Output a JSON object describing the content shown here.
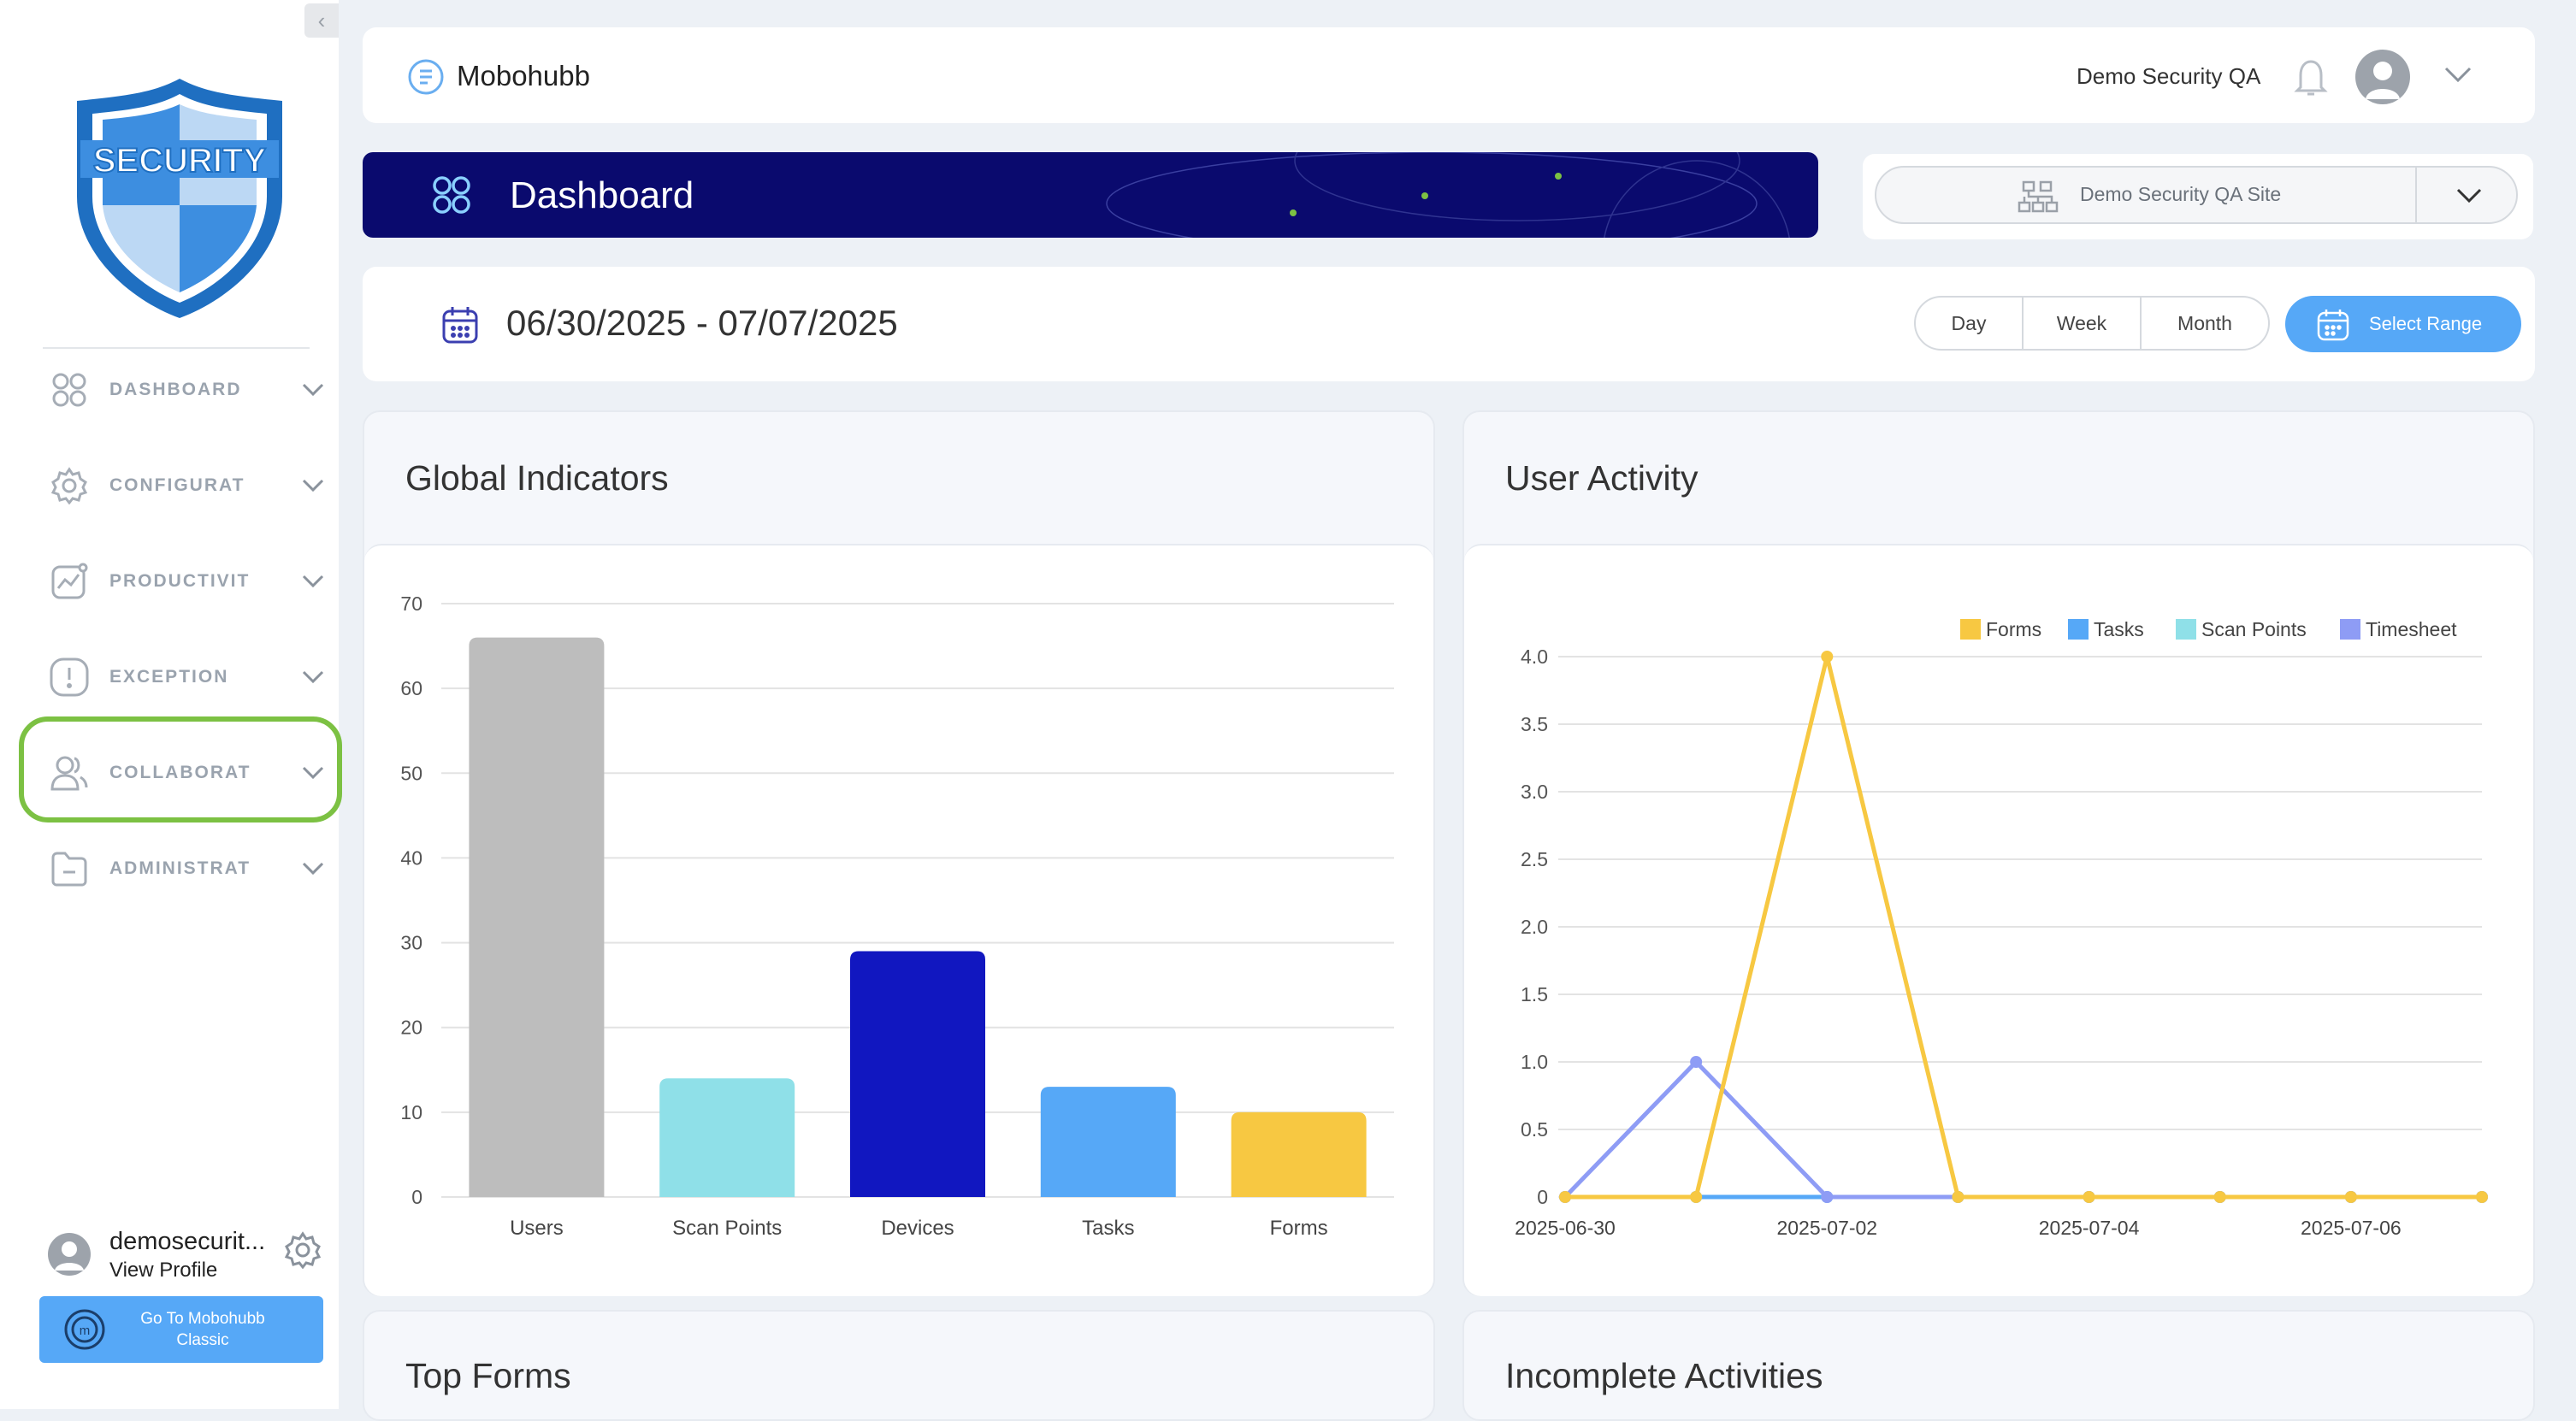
{
  "topbar": {
    "app_name": "Mobohubb",
    "user_name": "Demo Security QA"
  },
  "banner": {
    "title": "Dashboard"
  },
  "site_select": {
    "value": "Demo Security QA Site"
  },
  "date_bar": {
    "range": "06/30/2025 - 07/07/2025",
    "buttons": [
      "Day",
      "Week",
      "Month"
    ],
    "select_range": "Select Range"
  },
  "logo": {
    "text": "SECURITY"
  },
  "sidebar": {
    "items": [
      {
        "label": "DASHBOARD",
        "icon": "grid-icon"
      },
      {
        "label": "CONFIGURAT",
        "icon": "gear-icon"
      },
      {
        "label": "PRODUCTIVIT",
        "icon": "trend-chart-icon"
      },
      {
        "label": "EXCEPTION",
        "icon": "exclamation-icon"
      },
      {
        "label": "COLLABORAT",
        "icon": "users-icon"
      },
      {
        "label": "ADMINISTRAT",
        "icon": "folder-icon"
      }
    ],
    "profile": {
      "name": "demosecurit...",
      "link": "View Profile"
    },
    "classic_button": "Go To Mobohubb Classic"
  },
  "panels": {
    "global_indicators": "Global Indicators",
    "user_activity": "User Activity",
    "top_forms": "Top Forms",
    "incomplete_activities": "Incomplete Activities"
  },
  "chart_data": [
    {
      "type": "bar",
      "title": "Global Indicators",
      "categories": [
        "Users",
        "Scan Points",
        "Devices",
        "Tasks",
        "Forms"
      ],
      "values": [
        66,
        14,
        29,
        13,
        10
      ],
      "colors": [
        "#bdbdbd",
        "#8fe0e8",
        "#1117c0",
        "#56a8f7",
        "#f7c842"
      ],
      "ylim": [
        0,
        70
      ],
      "yticks": [
        0,
        10,
        20,
        30,
        40,
        50,
        60,
        70
      ],
      "grid": true
    },
    {
      "type": "line",
      "title": "User Activity",
      "x": [
        "2025-06-30",
        "2025-07-01",
        "2025-07-02",
        "2025-07-03",
        "2025-07-04",
        "2025-07-05",
        "2025-07-06",
        "2025-07-07"
      ],
      "xtick_labels": [
        "2025-06-30",
        "2025-07-02",
        "2025-07-04",
        "2025-07-06"
      ],
      "ylim": [
        0,
        4.0
      ],
      "yticks": [
        "0",
        "0.5",
        "1.0",
        "1.5",
        "2.0",
        "2.5",
        "3.0",
        "3.5",
        "4.0"
      ],
      "legend_position": "top-right",
      "grid": true,
      "series": [
        {
          "name": "Forms",
          "color": "#f7c842",
          "values": [
            0,
            0,
            4,
            0,
            0,
            0,
            0,
            0
          ]
        },
        {
          "name": "Tasks",
          "color": "#56a8f7",
          "values": [
            0,
            0,
            0,
            0,
            0,
            0,
            0,
            0
          ]
        },
        {
          "name": "Scan Points",
          "color": "#8fe0e8",
          "values": [
            0,
            0,
            0,
            0,
            0,
            0,
            0,
            0
          ]
        },
        {
          "name": "Timesheet",
          "color": "#8e9cf5",
          "values": [
            0,
            1,
            0,
            0,
            0,
            0,
            0,
            0
          ]
        }
      ]
    }
  ]
}
